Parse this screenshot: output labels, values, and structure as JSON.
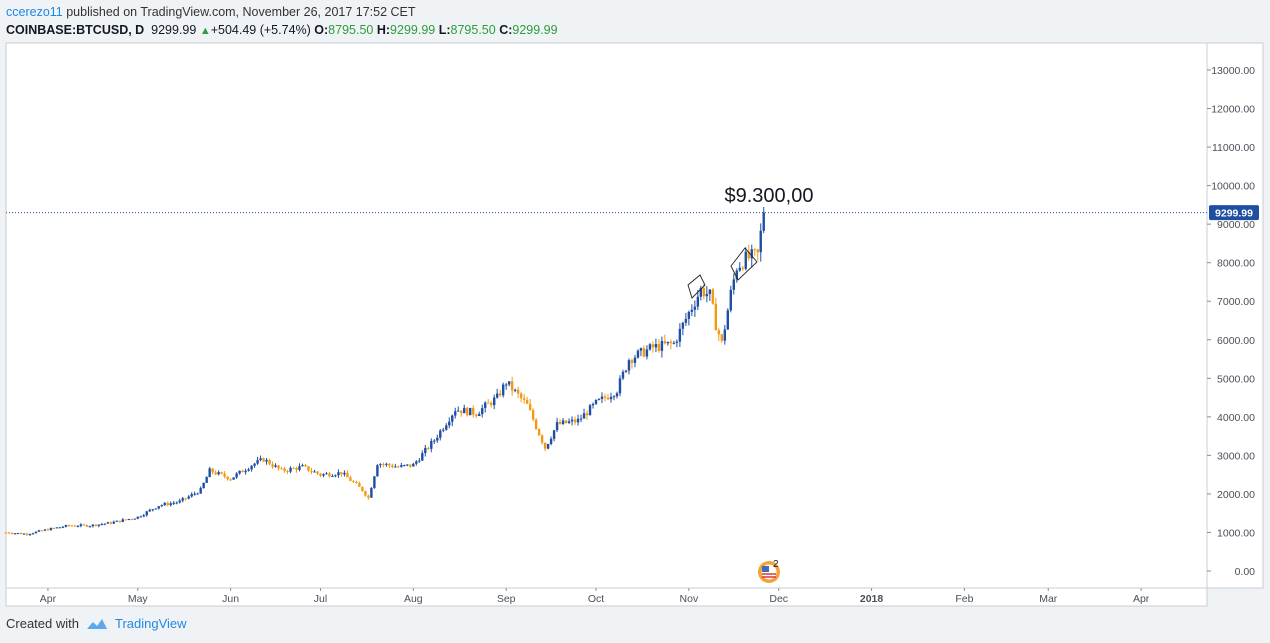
{
  "header": {
    "user": "ccerezo11",
    "published_text": "published on TradingView.com, November 26, 2017 17:52 CET",
    "symbol": "COINBASE:BTCUSD, D",
    "last": "9299.99",
    "change": "+504.49 (+5.74%)",
    "o_label": "O:",
    "o_value": "8795.50",
    "h_label": "H:",
    "h_value": "9299.99",
    "l_label": "L:",
    "l_value": "8795.50",
    "c_label": "C:",
    "c_value": "9299.99"
  },
  "annotation": {
    "text": "$9.300,00"
  },
  "price_badge": "9299.99",
  "event_badge": {
    "count": "2",
    "icon": "us-flag-icon"
  },
  "footer": {
    "created_with": "Created with",
    "brand": "TradingView",
    "logo_icon": "tradingview-cloud-icon"
  },
  "colors": {
    "up": "#1f4fa3",
    "down": "#f29a16",
    "price_line": "#1f4fa3",
    "badge": "#1f4fa3"
  },
  "chart_data": {
    "type": "candlestick",
    "title": "",
    "xlabel": "",
    "ylabel": "",
    "ylim": [
      -300,
      14000
    ],
    "y_ticks": [
      "0.00",
      "1000.00",
      "2000.00",
      "3000.00",
      "4000.00",
      "5000.00",
      "6000.00",
      "7000.00",
      "8000.00",
      "9000.00",
      "10000.00",
      "11000.00",
      "12000.00",
      "13000.00"
    ],
    "y_tick_values": [
      0,
      1000,
      2000,
      3000,
      4000,
      5000,
      6000,
      7000,
      8000,
      9000,
      10000,
      11000,
      12000,
      13000
    ],
    "x_ticks": [
      "Apr",
      "May",
      "Jun",
      "Jul",
      "Aug",
      "Sep",
      "Oct",
      "Nov",
      "Dec",
      "2018",
      "Feb",
      "Mar",
      "Apr"
    ],
    "x_tick_dates": [
      "2017-04-01",
      "2017-05-01",
      "2017-06-01",
      "2017-07-01",
      "2017-08-01",
      "2017-09-01",
      "2017-10-01",
      "2017-11-01",
      "2017-12-01",
      "2018-01-01",
      "2018-02-01",
      "2018-03-01",
      "2018-04-01"
    ],
    "x_range": [
      "2017-03-18",
      "2018-04-23"
    ],
    "grid": false,
    "last_price": 9299.99,
    "series": [
      {
        "date": "2017-03-18",
        "close": 1000
      },
      {
        "date": "2017-03-25",
        "close": 960
      },
      {
        "date": "2017-04-01",
        "close": 1080
      },
      {
        "date": "2017-04-08",
        "close": 1180
      },
      {
        "date": "2017-04-15",
        "close": 1180
      },
      {
        "date": "2017-04-22",
        "close": 1250
      },
      {
        "date": "2017-05-01",
        "close": 1400
      },
      {
        "date": "2017-05-08",
        "close": 1700
      },
      {
        "date": "2017-05-15",
        "close": 1800
      },
      {
        "date": "2017-05-22",
        "close": 2100
      },
      {
        "date": "2017-05-25",
        "close": 2600
      },
      {
        "date": "2017-06-01",
        "close": 2400
      },
      {
        "date": "2017-06-08",
        "close": 2750
      },
      {
        "date": "2017-06-12",
        "close": 2900
      },
      {
        "date": "2017-06-18",
        "close": 2600
      },
      {
        "date": "2017-06-25",
        "close": 2700
      },
      {
        "date": "2017-07-01",
        "close": 2500
      },
      {
        "date": "2017-07-08",
        "close": 2550
      },
      {
        "date": "2017-07-15",
        "close": 2100
      },
      {
        "date": "2017-07-17",
        "close": 1900
      },
      {
        "date": "2017-07-20",
        "close": 2800
      },
      {
        "date": "2017-07-27",
        "close": 2700
      },
      {
        "date": "2017-08-01",
        "close": 2750
      },
      {
        "date": "2017-08-08",
        "close": 3400
      },
      {
        "date": "2017-08-15",
        "close": 4200
      },
      {
        "date": "2017-08-22",
        "close": 4100
      },
      {
        "date": "2017-08-29",
        "close": 4500
      },
      {
        "date": "2017-09-01",
        "close": 4900
      },
      {
        "date": "2017-09-08",
        "close": 4300
      },
      {
        "date": "2017-09-14",
        "close": 3200
      },
      {
        "date": "2017-09-18",
        "close": 3800
      },
      {
        "date": "2017-09-25",
        "close": 3900
      },
      {
        "date": "2017-10-01",
        "close": 4350
      },
      {
        "date": "2017-10-08",
        "close": 4700
      },
      {
        "date": "2017-10-12",
        "close": 5500
      },
      {
        "date": "2017-10-20",
        "close": 5800
      },
      {
        "date": "2017-10-27",
        "close": 5900
      },
      {
        "date": "2017-11-01",
        "close": 6700
      },
      {
        "date": "2017-11-05",
        "close": 7300
      },
      {
        "date": "2017-11-08",
        "close": 7150
      },
      {
        "date": "2017-11-10",
        "close": 6400
      },
      {
        "date": "2017-11-12",
        "close": 5900
      },
      {
        "date": "2017-11-15",
        "close": 7200
      },
      {
        "date": "2017-11-17",
        "close": 7900
      },
      {
        "date": "2017-11-20",
        "close": 8100
      },
      {
        "date": "2017-11-24",
        "close": 8200
      },
      {
        "date": "2017-11-26",
        "close": 9299.99
      }
    ]
  }
}
